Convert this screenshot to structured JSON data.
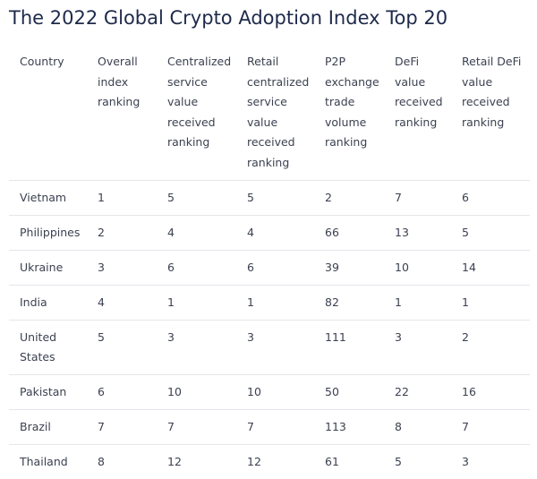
{
  "title": "The 2022 Global Crypto Adoption Index Top 20",
  "table": {
    "header": [
      [
        "Country"
      ],
      [
        "Overall",
        "index",
        "ranking"
      ],
      [
        "Centralized",
        "service",
        "value",
        "received",
        "ranking"
      ],
      [
        "Retail",
        "centralized",
        "service",
        "value",
        "received",
        "ranking"
      ],
      [
        "P2P",
        "exchange",
        "trade",
        "volume",
        "ranking"
      ],
      [
        "DeFi",
        "value",
        "received",
        "ranking"
      ],
      [
        "Retail DeFi",
        "value",
        "received",
        "ranking"
      ]
    ],
    "rows": [
      [
        "Vietnam",
        1,
        5,
        5,
        2,
        7,
        6
      ],
      [
        "Philippines",
        2,
        4,
        4,
        66,
        13,
        5
      ],
      [
        "Ukraine",
        3,
        6,
        6,
        39,
        10,
        14
      ],
      [
        "India",
        4,
        1,
        1,
        82,
        1,
        1
      ],
      [
        "United States",
        5,
        3,
        3,
        111,
        3,
        2
      ],
      [
        "Pakistan",
        6,
        10,
        10,
        50,
        22,
        16
      ],
      [
        "Brazil",
        7,
        7,
        7,
        113,
        8,
        7
      ],
      [
        "Thailand",
        8,
        12,
        12,
        61,
        5,
        3
      ]
    ]
  }
}
